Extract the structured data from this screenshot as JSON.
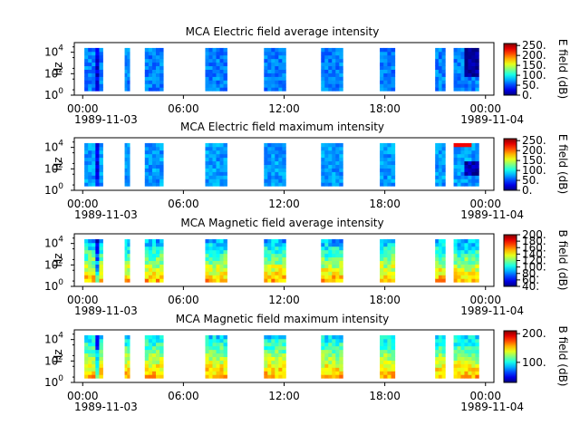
{
  "figure": {
    "background": "#ffffff"
  },
  "chart_data": [
    {
      "type": "heatmap",
      "title": "MCA  Electric field average intensity",
      "ylabel": "Hz",
      "colorbar_label": "E field (dB)",
      "colorbar_ticks": [
        "0.",
        "50.",
        "100.",
        "150.",
        "200.",
        "250."
      ],
      "colorbar_range": [
        0,
        260
      ],
      "y_ticks": [
        {
          "base": "10",
          "exp": "0"
        },
        {
          "base": "10",
          "exp": "2"
        },
        {
          "base": "10",
          "exp": "4"
        }
      ],
      "x_ticks": [
        "00:00",
        "06:00",
        "12:00",
        "18:00",
        "00:00"
      ],
      "x_start_label": "1989-11-03",
      "x_end_label": "1989-11-04",
      "x_range_hours": [
        -0.5,
        24.5
      ],
      "freq_range_log10": [
        0,
        4.9
      ],
      "data_freq_range_log10": [
        0.4,
        4.4
      ],
      "data_intervals_hours": [
        [
          0.1,
          1.2
        ],
        [
          2.5,
          2.8
        ],
        [
          3.7,
          4.8
        ],
        [
          7.3,
          8.6
        ],
        [
          10.8,
          12.1
        ],
        [
          14.2,
          15.5
        ],
        [
          17.7,
          18.6
        ],
        [
          21.0,
          21.6
        ],
        [
          22.1,
          23.6
        ]
      ],
      "base_level": 65,
      "high_level": 0
    },
    {
      "type": "heatmap",
      "title": "MCA  Electric field maximum intensity",
      "ylabel": "Hz",
      "colorbar_label": "E field (dB)",
      "colorbar_ticks": [
        "0.",
        "50.",
        "100.",
        "150.",
        "200.",
        "250."
      ],
      "colorbar_range": [
        0,
        260
      ],
      "y_ticks": [
        {
          "base": "10",
          "exp": "0"
        },
        {
          "base": "10",
          "exp": "2"
        },
        {
          "base": "10",
          "exp": "4"
        }
      ],
      "x_ticks": [
        "00:00",
        "06:00",
        "12:00",
        "18:00",
        "00:00"
      ],
      "x_start_label": "1989-11-03",
      "x_end_label": "1989-11-04",
      "x_range_hours": [
        -0.5,
        24.5
      ],
      "freq_range_log10": [
        0,
        4.9
      ],
      "data_freq_range_log10": [
        0.4,
        4.4
      ],
      "data_intervals_hours": [
        [
          0.1,
          1.2
        ],
        [
          2.5,
          2.8
        ],
        [
          3.7,
          4.8
        ],
        [
          7.3,
          8.6
        ],
        [
          10.8,
          12.1
        ],
        [
          14.2,
          15.5
        ],
        [
          17.7,
          18.6
        ],
        [
          21.0,
          21.6
        ],
        [
          22.1,
          23.6
        ]
      ],
      "base_level": 72,
      "high_level": 1
    },
    {
      "type": "heatmap",
      "title": "MCA  Magnetic field average intensity",
      "ylabel": "Hz",
      "colorbar_label": "B field (dB)",
      "colorbar_ticks": [
        "40.",
        "60.",
        "80.",
        "100.",
        "120.",
        "140.",
        "160.",
        "180.",
        "200."
      ],
      "colorbar_range": [
        40,
        200
      ],
      "y_ticks": [
        {
          "base": "10",
          "exp": "0"
        },
        {
          "base": "10",
          "exp": "2"
        },
        {
          "base": "10",
          "exp": "4"
        }
      ],
      "x_ticks": [
        "00:00",
        "06:00",
        "12:00",
        "18:00",
        "00:00"
      ],
      "x_start_label": "1989-11-03",
      "x_end_label": "1989-11-04",
      "x_range_hours": [
        -0.5,
        24.5
      ],
      "freq_range_log10": [
        0,
        4.9
      ],
      "data_freq_range_log10": [
        0.4,
        4.4
      ],
      "data_intervals_hours": [
        [
          0.1,
          1.2
        ],
        [
          2.5,
          2.8
        ],
        [
          3.7,
          4.8
        ],
        [
          7.3,
          8.6
        ],
        [
          10.8,
          12.1
        ],
        [
          14.2,
          15.5
        ],
        [
          17.7,
          18.6
        ],
        [
          21.0,
          21.6
        ],
        [
          22.1,
          23.6
        ]
      ],
      "base_level": 105,
      "high_level": 2
    },
    {
      "type": "heatmap",
      "title": "MCA  Magnetic field maximum intensity",
      "ylabel": "Hz",
      "colorbar_label": "B field (dB)",
      "colorbar_ticks": [
        "100.",
        "200."
      ],
      "colorbar_range": [
        30,
        210
      ],
      "y_ticks": [
        {
          "base": "10",
          "exp": "0"
        },
        {
          "base": "10",
          "exp": "2"
        },
        {
          "base": "10",
          "exp": "4"
        }
      ],
      "x_ticks": [
        "00:00",
        "06:00",
        "12:00",
        "18:00",
        "00:00"
      ],
      "x_start_label": "1989-11-03",
      "x_end_label": "1989-11-04",
      "x_range_hours": [
        -0.5,
        24.5
      ],
      "freq_range_log10": [
        0,
        4.9
      ],
      "data_freq_range_log10": [
        0.4,
        4.4
      ],
      "data_intervals_hours": [
        [
          0.1,
          1.2
        ],
        [
          2.5,
          2.8
        ],
        [
          3.7,
          4.8
        ],
        [
          7.3,
          8.6
        ],
        [
          10.8,
          12.1
        ],
        [
          14.2,
          15.5
        ],
        [
          17.7,
          18.6
        ],
        [
          21.0,
          21.6
        ],
        [
          22.1,
          23.6
        ]
      ],
      "base_level": 110,
      "high_level": 2
    }
  ]
}
